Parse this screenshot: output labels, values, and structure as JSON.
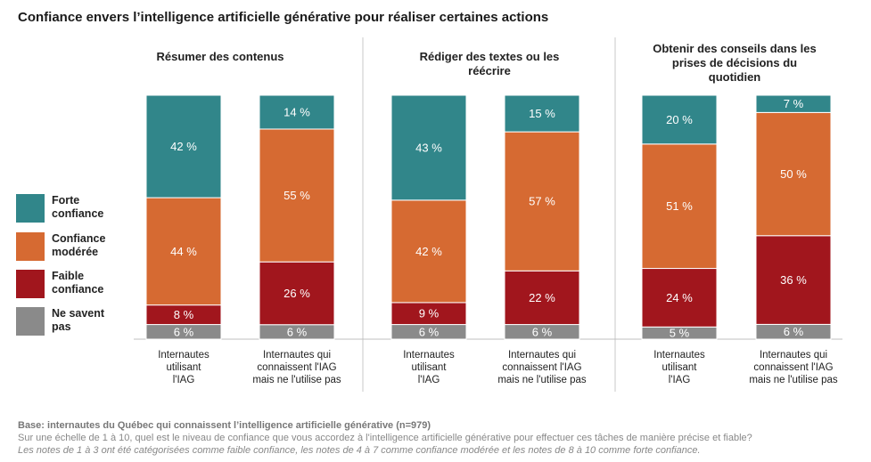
{
  "title": "Confiance envers l’intelligence artificielle générative pour réaliser certaines actions",
  "legend": [
    {
      "label": "Forte confiance",
      "color": "#31868a"
    },
    {
      "label": "Confiance modérée",
      "color": "#d66a32"
    },
    {
      "label": "Faible confiance",
      "color": "#a1161d"
    },
    {
      "label": "Ne savent pas",
      "color": "#8a8a8a"
    }
  ],
  "footnotes": {
    "base": "Base: internautes du Québec qui connaissent l’intelligence artificielle générative (n=979)",
    "question": "Sur une échelle de 1 à 10, quel est le niveau de confiance que vous accordez à l'intelligence artificielle générative pour effectuer ces tâches de manière précise et fiable?",
    "note": "Les notes de 1 à 3 ont été catégorisées comme faible confiance, les notes de 4 à 7 comme confiance modérée et les notes de 8 à 10 comme forte confiance."
  },
  "chart_data": {
    "type": "bar",
    "stacked": true,
    "value_unit": "%",
    "categories": [
      "Internautes utilisant l'IAG",
      "Internautes qui connaissent l'IAG mais ne l'utilise pas"
    ],
    "series": [
      {
        "name": "Ne savent pas",
        "color": "#8a8a8a"
      },
      {
        "name": "Faible confiance",
        "color": "#a1161d"
      },
      {
        "name": "Confiance modérée",
        "color": "#d66a32"
      },
      {
        "name": "Forte confiance",
        "color": "#31868a"
      }
    ],
    "panels": [
      {
        "title": "Résumer des contenus",
        "values": [
          [
            6,
            8,
            44,
            42
          ],
          [
            6,
            26,
            55,
            14
          ]
        ]
      },
      {
        "title": "Rédiger des textes ou les réécrire",
        "values": [
          [
            6,
            9,
            42,
            43
          ],
          [
            6,
            22,
            57,
            15
          ]
        ]
      },
      {
        "title": "Obtenir des conseils dans les prises de décisions du quotidien",
        "values": [
          [
            5,
            24,
            51,
            20
          ],
          [
            6,
            36,
            50,
            7
          ]
        ]
      }
    ],
    "legend_position": "left",
    "grid": false
  }
}
